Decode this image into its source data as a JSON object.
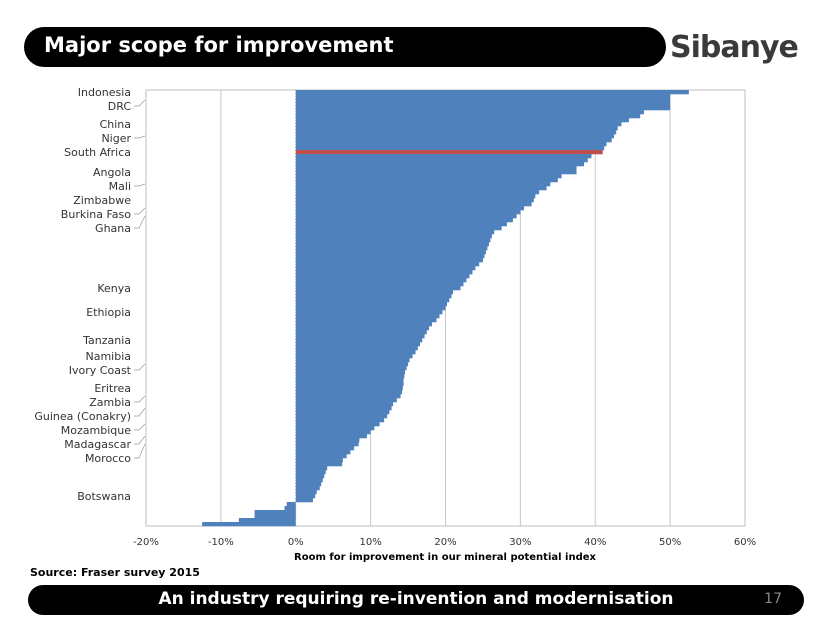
{
  "header": {
    "title": "Major scope for improvement",
    "logo": "Sibanye"
  },
  "footer": {
    "tagline": "An industry requiring re-invention and modernisation",
    "page_number": "17"
  },
  "source": "Source: Fraser survey 2015",
  "chart_data": {
    "type": "bar",
    "orientation": "horizontal",
    "xlabel": "Room for improvement in our mineral potential index",
    "xlim": [
      -20,
      60
    ],
    "xticks": [
      -20,
      -10,
      0,
      10,
      20,
      30,
      40,
      50,
      60
    ],
    "xtick_labels": [
      "-20%",
      "-10%",
      "0%",
      "10%",
      "20%",
      "30%",
      "40%",
      "50%",
      "60%"
    ],
    "grid": "vertical",
    "bar_color": "#4f81bd",
    "highlight_color": "#c0504d",
    "highlight_country": "South Africa",
    "labeled_countries": [
      {
        "name": "Indonesia",
        "index": 0
      },
      {
        "name": "DRC",
        "index": 2
      },
      {
        "name": "China",
        "index": 8
      },
      {
        "name": "Niger",
        "index": 11
      },
      {
        "name": "South Africa",
        "index": 15
      },
      {
        "name": "Angola",
        "index": 20
      },
      {
        "name": "Mali",
        "index": 23
      },
      {
        "name": "Zimbabwe",
        "index": 27
      },
      {
        "name": "Burkina Faso",
        "index": 29
      },
      {
        "name": "Ghana",
        "index": 31
      },
      {
        "name": "Kenya",
        "index": 49
      },
      {
        "name": "Ethiopia",
        "index": 55
      },
      {
        "name": "Tanzania",
        "index": 62
      },
      {
        "name": "Namibia",
        "index": 66
      },
      {
        "name": "Ivory Coast",
        "index": 68
      },
      {
        "name": "Eritrea",
        "index": 74
      },
      {
        "name": "Zambia",
        "index": 76
      },
      {
        "name": "Guinea (Conakry)",
        "index": 79
      },
      {
        "name": "Mozambique",
        "index": 83
      },
      {
        "name": "Madagascar",
        "index": 86
      },
      {
        "name": "Morocco",
        "index": 88
      },
      {
        "name": "Botswana",
        "index": 101
      }
    ],
    "values": [
      52.5,
      50,
      50,
      50,
      50,
      46.5,
      46,
      44.5,
      43.5,
      43,
      42.8,
      42.5,
      42.2,
      41.5,
      41.2,
      41,
      39.5,
      39,
      38.5,
      37.5,
      37.5,
      35.5,
      35,
      34,
      33.5,
      32.5,
      32,
      31.8,
      31.5,
      30.5,
      30,
      29.5,
      29,
      28.2,
      27.5,
      26.5,
      26.2,
      26,
      25.8,
      25.6,
      25.4,
      25.2,
      25,
      24.5,
      24,
      23.6,
      23.2,
      22.8,
      22.4,
      22,
      21,
      20.8,
      20.5,
      20.2,
      20,
      19.6,
      19.2,
      18.8,
      18.2,
      17.8,
      17.5,
      17.2,
      16.9,
      16.6,
      16.3,
      16,
      15.6,
      15.2,
      15,
      14.8,
      14.6,
      14.5,
      14.4,
      14.4,
      14.3,
      14.2,
      14,
      13.5,
      13,
      12.8,
      12.5,
      12.2,
      11.8,
      11.2,
      10.5,
      10,
      9.5,
      8.5,
      8.4,
      7.8,
      7.3,
      6.8,
      6.3,
      6.2,
      4.2,
      4,
      3.8,
      3.6,
      3.4,
      3.2,
      2.8,
      2.6,
      2.3,
      -1.2,
      -1.5,
      -5.5,
      -5.5,
      -7.6,
      -12.5
    ]
  }
}
